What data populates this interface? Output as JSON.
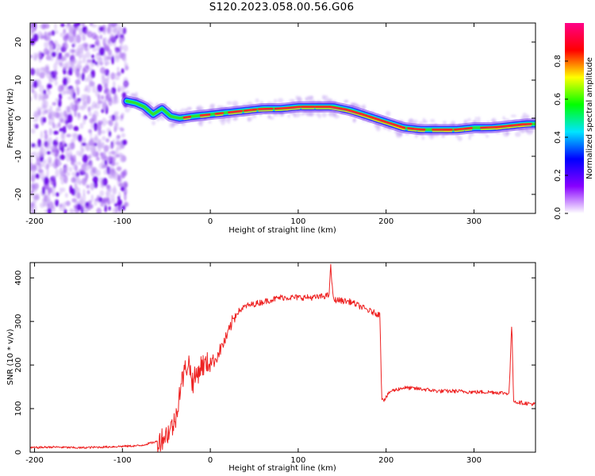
{
  "title": "S120.2023.058.00.56.G06",
  "chart_data": [
    {
      "type": "heatmap",
      "xlabel": "Height of straight line (km)",
      "ylabel": "Frequency (Hz)",
      "xlim": [
        -205,
        370
      ],
      "ylim": [
        -25,
        25
      ],
      "xticks": [
        -200,
        -100,
        0,
        100,
        200,
        300
      ],
      "yticks": [
        -20,
        -10,
        0,
        10,
        20
      ],
      "colorbar": {
        "label": "Normalized spectral amplitude",
        "range": [
          0,
          1
        ],
        "ticks": [
          "0.0",
          "0.2",
          "0.4",
          "0.6",
          "0.8"
        ],
        "tick_values": [
          0,
          0.2,
          0.4,
          0.6,
          0.8
        ],
        "colors": [
          "#ffffff",
          "#8800ff",
          "#0000ff",
          "#00e5ff",
          "#00ff00",
          "#ffff00",
          "#ff0000",
          "#ff0088"
        ]
      },
      "noise_region_x": [
        -205,
        -95
      ],
      "ridge": {
        "x": [
          -95,
          -85,
          -75,
          -65,
          -55,
          -45,
          -35,
          -20,
          0,
          20,
          40,
          60,
          80,
          100,
          120,
          140,
          160,
          180,
          200,
          220,
          240,
          260,
          280,
          300,
          320,
          340,
          360,
          370
        ],
        "y": [
          4.5,
          4.0,
          3.0,
          1.0,
          2.5,
          0.5,
          0.0,
          0.5,
          1.0,
          1.5,
          2.0,
          2.5,
          2.5,
          3.0,
          3.0,
          3.0,
          2.0,
          0.5,
          -1.0,
          -2.5,
          -3.0,
          -3.0,
          -3.0,
          -2.5,
          -2.5,
          -2.0,
          -1.5,
          -1.5
        ]
      }
    },
    {
      "type": "line",
      "xlabel": "Height of straight line (km)",
      "ylabel": "SNR (10 * v/v)",
      "xlim": [
        -205,
        370
      ],
      "ylim": [
        0,
        435
      ],
      "xticks": [
        -200,
        -100,
        0,
        100,
        200,
        300
      ],
      "yticks": [
        0,
        100,
        200,
        300,
        400
      ],
      "series": [
        {
          "color": "#ee2222",
          "x": [
            -205,
            -180,
            -150,
            -120,
            -80,
            -60,
            -50,
            -40,
            -35,
            -30,
            -25,
            -20,
            -15,
            -10,
            -5,
            0,
            5,
            10,
            15,
            20,
            25,
            30,
            40,
            60,
            80,
            100,
            120,
            135,
            137,
            140,
            160,
            180,
            193,
            195,
            198,
            205,
            220,
            240,
            260,
            280,
            300,
            320,
            340,
            343,
            345,
            348,
            360,
            370
          ],
          "y": [
            10,
            12,
            10,
            12,
            15,
            25,
            40,
            70,
            140,
            180,
            210,
            160,
            180,
            200,
            200,
            210,
            210,
            230,
            250,
            270,
            300,
            320,
            335,
            345,
            355,
            355,
            355,
            360,
            425,
            350,
            345,
            325,
            315,
            125,
            120,
            140,
            148,
            145,
            140,
            140,
            138,
            138,
            135,
            300,
            120,
            115,
            112,
            110
          ]
        }
      ]
    }
  ]
}
